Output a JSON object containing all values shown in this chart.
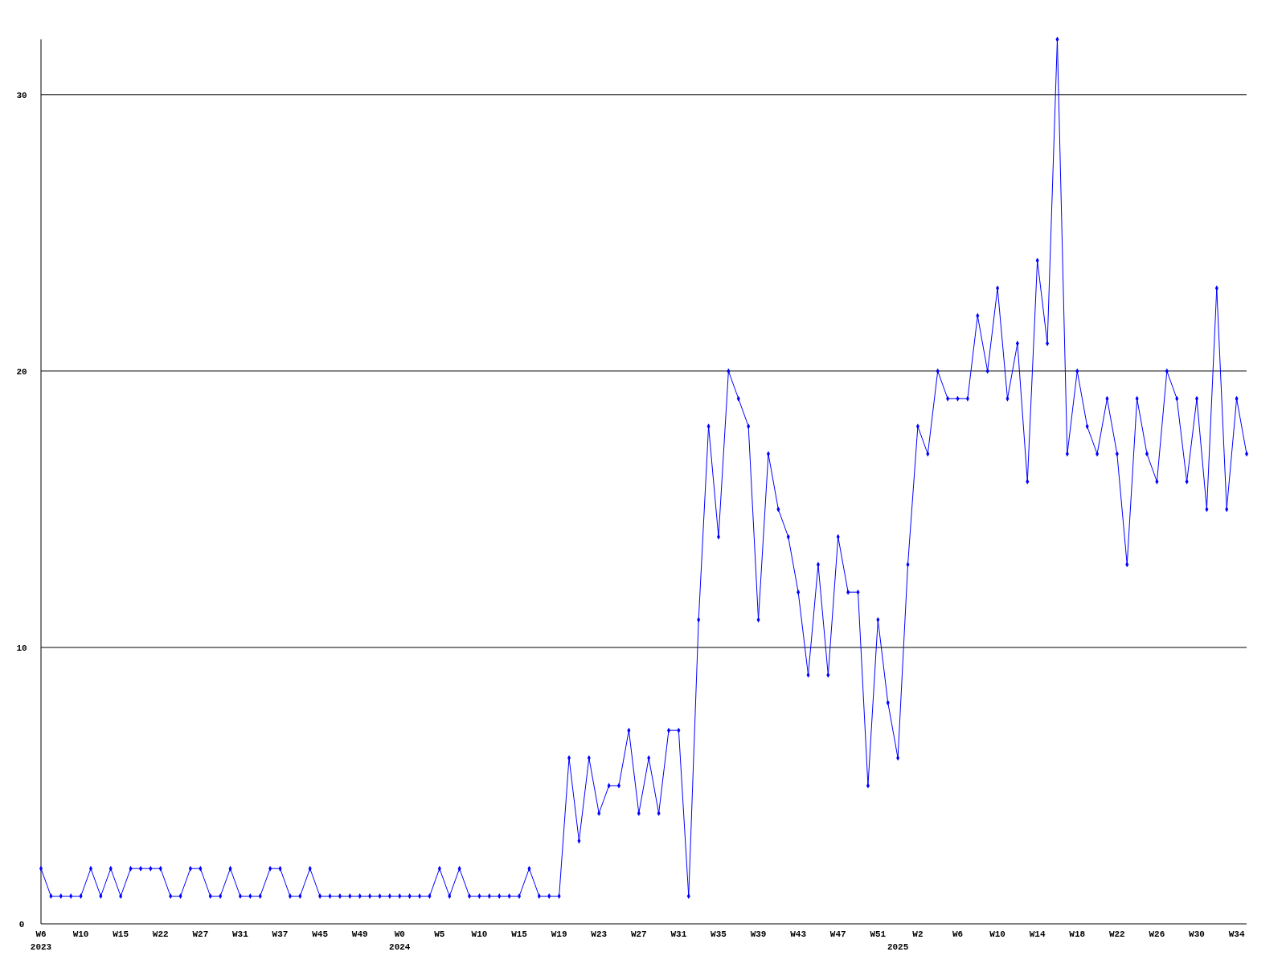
{
  "chart_data": {
    "type": "line",
    "categories": [
      "W6\n2023",
      null,
      null,
      null,
      "W10",
      null,
      null,
      null,
      "W15",
      null,
      null,
      null,
      "W22",
      null,
      null,
      null,
      "W27",
      null,
      null,
      null,
      "W31",
      null,
      null,
      null,
      "W37",
      null,
      null,
      null,
      "W45",
      null,
      null,
      null,
      "W49",
      null,
      null,
      null,
      "W0\n2024",
      null,
      null,
      null,
      "W5",
      null,
      null,
      null,
      "W10",
      null,
      null,
      null,
      "W15",
      null,
      null,
      null,
      "W19",
      null,
      null,
      null,
      "W23",
      null,
      null,
      null,
      "W27",
      null,
      null,
      null,
      "W31",
      null,
      null,
      null,
      "W35",
      null,
      null,
      null,
      "W39",
      null,
      null,
      null,
      "W43",
      null,
      null,
      null,
      "W47",
      null,
      null,
      null,
      "W51",
      null,
      "\n2025",
      null,
      "W2",
      null,
      null,
      null,
      "W6",
      null,
      null,
      null,
      "W10",
      null,
      null,
      null,
      "W14",
      null,
      null,
      null,
      "W18",
      null,
      null,
      null,
      "W22",
      null,
      null,
      null,
      "W26",
      null,
      null,
      null,
      "W30",
      null,
      null,
      null,
      "W34",
      null
    ],
    "series": [
      {
        "color": "#0000ff",
        "values": [
          2,
          1,
          1,
          1,
          1,
          2,
          1,
          2,
          1,
          2,
          2,
          2,
          2,
          1,
          1,
          2,
          2,
          1,
          1,
          2,
          1,
          1,
          1,
          2,
          2,
          1,
          1,
          2,
          1,
          1,
          1,
          1,
          1,
          1,
          1,
          1,
          1,
          1,
          1,
          1,
          2,
          1,
          2,
          1,
          1,
          1,
          1,
          1,
          1,
          2,
          1,
          1,
          1,
          6,
          3,
          6,
          4,
          5,
          5,
          7,
          4,
          6,
          4,
          7,
          7,
          1,
          11,
          18,
          14,
          20,
          19,
          18,
          11,
          17,
          15,
          14,
          12,
          9,
          13,
          9,
          14,
          12,
          12,
          5,
          11,
          8,
          6,
          13,
          18,
          17,
          20,
          19,
          19,
          19,
          22,
          20,
          23,
          19,
          21,
          16,
          24,
          21,
          32,
          17,
          20,
          18,
          17,
          19,
          17,
          13,
          19,
          17,
          16,
          20,
          19,
          16,
          19,
          15,
          23,
          15,
          19,
          17
        ]
      }
    ],
    "ylim": [
      0,
      32
    ],
    "yticks": [
      0,
      10,
      20,
      30
    ],
    "grid": "y",
    "marker": "diamond",
    "line_style": "solid"
  }
}
